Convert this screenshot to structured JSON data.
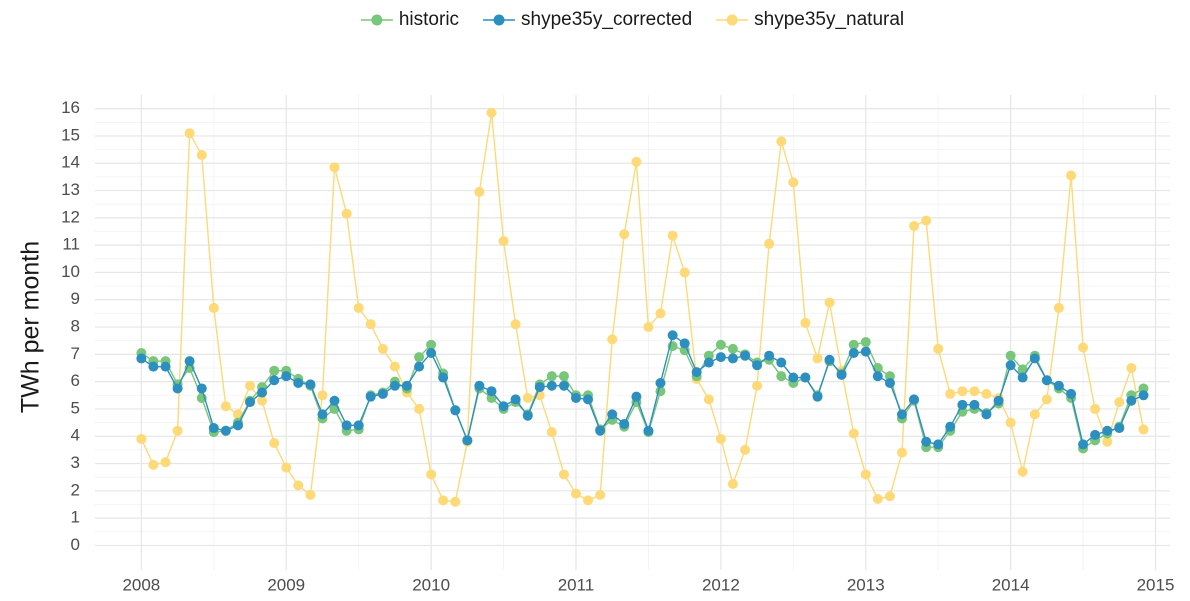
{
  "chart_data": {
    "type": "line",
    "y_label": "TWh per month",
    "x": [
      2008,
      2008.083,
      2008.167,
      2008.25,
      2008.333,
      2008.417,
      2008.5,
      2008.583,
      2008.667,
      2008.75,
      2008.833,
      2008.917,
      2009,
      2009.083,
      2009.167,
      2009.25,
      2009.333,
      2009.417,
      2009.5,
      2009.583,
      2009.667,
      2009.75,
      2009.833,
      2009.917,
      2010,
      2010.083,
      2010.167,
      2010.25,
      2010.333,
      2010.417,
      2010.5,
      2010.583,
      2010.667,
      2010.75,
      2010.833,
      2010.917,
      2011,
      2011.083,
      2011.167,
      2011.25,
      2011.333,
      2011.417,
      2011.5,
      2011.583,
      2011.667,
      2011.75,
      2011.833,
      2011.917,
      2012,
      2012.083,
      2012.167,
      2012.25,
      2012.333,
      2012.417,
      2012.5,
      2012.583,
      2012.667,
      2012.75,
      2012.833,
      2012.917,
      2013,
      2013.083,
      2013.167,
      2013.25,
      2013.333,
      2013.417,
      2013.5,
      2013.583,
      2013.667,
      2013.75,
      2013.833,
      2013.917,
      2014,
      2014.083,
      2014.167,
      2014.25,
      2014.333,
      2014.417,
      2014.5,
      2014.583,
      2014.667,
      2014.75,
      2014.833,
      2014.917
    ],
    "series": [
      {
        "name": "historic",
        "color": "#78c679",
        "values": [
          7.05,
          6.75,
          6.75,
          5.9,
          6.5,
          5.4,
          4.15,
          4.2,
          4.5,
          5.3,
          5.8,
          6.4,
          6.4,
          6.1,
          5.85,
          4.65,
          5.0,
          4.2,
          4.25,
          5.5,
          5.6,
          6.0,
          5.75,
          6.9,
          7.35,
          6.3,
          4.95,
          3.85,
          5.75,
          5.4,
          5.0,
          5.25,
          4.8,
          5.9,
          6.2,
          6.2,
          5.5,
          5.5,
          4.25,
          4.6,
          4.35,
          5.25,
          4.15,
          5.65,
          7.3,
          7.15,
          6.2,
          6.95,
          7.35,
          7.2,
          7.0,
          6.7,
          6.8,
          6.2,
          5.95,
          6.15,
          5.5,
          6.75,
          6.3,
          7.35,
          7.45,
          6.5,
          6.2,
          4.65,
          5.3,
          3.6,
          3.6,
          4.2,
          4.9,
          5.0,
          4.85,
          5.2,
          6.95,
          6.45,
          6.95,
          6.05,
          5.75,
          5.4,
          3.55,
          3.85,
          4.1,
          4.35,
          5.5,
          5.75
        ]
      },
      {
        "name": "shype35y_corrected",
        "color": "#2c8fbf",
        "values": [
          6.85,
          6.55,
          6.55,
          5.75,
          6.75,
          5.75,
          4.3,
          4.2,
          4.4,
          5.25,
          5.6,
          6.05,
          6.2,
          5.95,
          5.9,
          4.8,
          5.3,
          4.4,
          4.4,
          5.45,
          5.55,
          5.85,
          5.85,
          6.55,
          7.05,
          6.15,
          4.95,
          3.85,
          5.85,
          5.65,
          5.1,
          5.35,
          4.75,
          5.8,
          5.85,
          5.85,
          5.4,
          5.35,
          4.2,
          4.8,
          4.45,
          5.45,
          4.2,
          5.95,
          7.7,
          7.4,
          6.35,
          6.7,
          6.9,
          6.85,
          6.95,
          6.6,
          6.95,
          6.7,
          6.15,
          6.15,
          5.45,
          6.8,
          6.25,
          7.05,
          7.1,
          6.2,
          5.95,
          4.8,
          5.35,
          3.8,
          3.7,
          4.35,
          5.15,
          5.15,
          4.8,
          5.3,
          6.6,
          6.15,
          6.85,
          6.05,
          5.85,
          5.55,
          3.7,
          4.05,
          4.2,
          4.3,
          5.3,
          5.5
        ]
      },
      {
        "name": "shype35y_natural",
        "color": "#fdd977",
        "values": [
          3.9,
          2.95,
          3.05,
          4.2,
          15.1,
          14.3,
          8.7,
          5.1,
          4.8,
          5.85,
          5.3,
          3.75,
          2.85,
          2.2,
          1.85,
          5.5,
          13.85,
          12.15,
          8.7,
          8.1,
          7.2,
          6.55,
          5.6,
          5.0,
          2.6,
          1.65,
          1.6,
          3.8,
          12.95,
          15.85,
          11.15,
          8.1,
          5.4,
          5.5,
          4.15,
          2.6,
          1.9,
          1.65,
          1.85,
          7.55,
          11.4,
          14.05,
          8.0,
          8.5,
          11.35,
          10.0,
          6.1,
          5.35,
          3.9,
          2.25,
          3.5,
          5.85,
          11.05,
          14.8,
          13.3,
          8.15,
          6.85,
          8.9,
          6.4,
          4.1,
          2.6,
          1.7,
          1.8,
          3.4,
          11.7,
          11.9,
          7.2,
          5.55,
          5.65,
          5.65,
          5.55,
          5.4,
          4.5,
          2.7,
          4.8,
          5.35,
          8.7,
          13.55,
          7.25,
          5.0,
          3.8,
          5.25,
          6.5,
          4.25
        ]
      }
    ],
    "xlim": [
      2007.68,
      2015.1
    ],
    "xticks": [
      2008,
      2009,
      2010,
      2011,
      2012,
      2013,
      2014,
      2015
    ],
    "ylim": [
      -0.9,
      16.5
    ],
    "yticks": [
      0,
      1,
      2,
      3,
      4,
      5,
      6,
      7,
      8,
      9,
      10,
      11,
      12,
      13,
      14,
      15,
      16
    ],
    "grid": true,
    "legend": "top"
  }
}
